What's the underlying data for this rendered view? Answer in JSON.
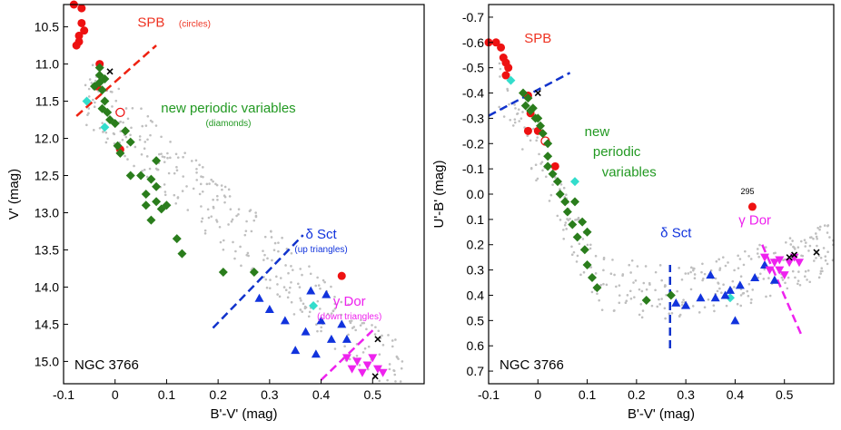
{
  "chart_data": [
    {
      "type": "scatter",
      "xlabel": "B'-V' (mag)",
      "ylabel": "V' (mag)",
      "xlim": [
        -0.1,
        0.6
      ],
      "ylim": [
        15.3,
        10.2
      ],
      "y_inverted": true,
      "x_ticks": [
        "-0.1",
        "0",
        "0.1",
        "0.2",
        "0.3",
        "0.4",
        "0.5"
      ],
      "x_tick_values": [
        -0.1,
        0,
        0.1,
        0.2,
        0.3,
        0.4,
        0.5
      ],
      "y_ticks": [
        "10.5",
        "11.0",
        "11.5",
        "12.0",
        "12.5",
        "13.0",
        "13.5",
        "14.0",
        "14.5",
        "15.0"
      ],
      "y_tick_values": [
        10.5,
        11.0,
        11.5,
        12.0,
        12.5,
        13.0,
        13.5,
        14.0,
        14.5,
        15.0
      ],
      "cluster_label": "NGC 3766",
      "labels": [
        {
          "text": "SPB",
          "sub": "(circles)",
          "color": "#ee3322",
          "x": 0.07,
          "y": 10.5
        },
        {
          "text": "new periodic variables",
          "sub": "(diamonds)",
          "color": "#229922",
          "x": 0.22,
          "y": 11.65
        },
        {
          "text": "δ Sct",
          "sub": "(up triangles)",
          "color": "#1133dd",
          "x": 0.4,
          "y": 13.35
        },
        {
          "text": "γ Dor",
          "sub": "(down triangles)",
          "color": "#ee22ee",
          "x": 0.455,
          "y": 14.25
        }
      ],
      "boundaries": [
        {
          "color": "#ee2211",
          "x": [
            -0.075,
            0.08
          ],
          "y": [
            11.7,
            10.75
          ]
        },
        {
          "color": "#1133cc",
          "x": [
            0.19,
            0.365
          ],
          "y": [
            14.55,
            13.3
          ]
        },
        {
          "color": "#ee22ee",
          "x": [
            0.4,
            0.505
          ],
          "y": [
            15.25,
            14.55
          ]
        }
      ],
      "series": [
        {
          "marker": "circle",
          "color": "#ee1111",
          "filled": true,
          "points": [
            [
              -0.08,
              10.2
            ],
            [
              -0.065,
              10.25
            ],
            [
              -0.065,
              10.45
            ],
            [
              -0.06,
              10.55
            ],
            [
              -0.07,
              10.62
            ],
            [
              -0.07,
              10.7
            ],
            [
              -0.075,
              10.75
            ],
            [
              -0.03,
              11.0
            ],
            [
              -0.035,
              11.3
            ],
            [
              0.01,
              12.15
            ],
            [
              0.44,
              13.85
            ]
          ]
        },
        {
          "marker": "circle",
          "color": "#ee1111",
          "filled": false,
          "points": [
            [
              0.01,
              11.65
            ]
          ]
        },
        {
          "marker": "diamond",
          "color": "#2a7d1c",
          "points": [
            [
              -0.03,
              11.25
            ],
            [
              -0.025,
              11.35
            ],
            [
              -0.02,
              11.5
            ],
            [
              -0.025,
              11.6
            ],
            [
              -0.015,
              11.65
            ],
            [
              -0.01,
              11.75
            ],
            [
              0.0,
              11.8
            ],
            [
              0.02,
              11.9
            ],
            [
              0.03,
              12.05
            ],
            [
              0.01,
              12.2
            ],
            [
              0.005,
              12.1
            ],
            [
              0.03,
              12.5
            ],
            [
              0.05,
              12.5
            ],
            [
              0.07,
              12.55
            ],
            [
              0.08,
              12.65
            ],
            [
              0.06,
              12.75
            ],
            [
              0.08,
              12.85
            ],
            [
              0.06,
              12.9
            ],
            [
              0.09,
              12.95
            ],
            [
              0.07,
              13.1
            ],
            [
              0.12,
              13.35
            ],
            [
              0.13,
              13.55
            ],
            [
              0.21,
              13.8
            ],
            [
              0.27,
              13.8
            ],
            [
              -0.04,
              11.3
            ],
            [
              -0.03,
              11.05
            ],
            [
              -0.03,
              11.15
            ],
            [
              -0.02,
              11.2
            ],
            [
              0.08,
              12.3
            ],
            [
              0.1,
              12.9
            ]
          ]
        },
        {
          "marker": "diamond",
          "color": "#33ddcc",
          "points": [
            [
              -0.055,
              11.5
            ],
            [
              -0.02,
              11.85
            ],
            [
              0.385,
              14.25
            ]
          ]
        },
        {
          "marker": "triangle-up",
          "color": "#1133dd",
          "points": [
            [
              0.3,
              14.3
            ],
            [
              0.33,
              14.45
            ],
            [
              0.37,
              14.6
            ],
            [
              0.35,
              14.85
            ],
            [
              0.39,
              14.9
            ],
            [
              0.41,
              14.1
            ],
            [
              0.42,
              14.7
            ],
            [
              0.44,
              14.5
            ],
            [
              0.45,
              14.7
            ],
            [
              0.38,
              14.05
            ],
            [
              0.28,
              14.15
            ],
            [
              0.4,
              14.45
            ]
          ]
        },
        {
          "marker": "triangle-down",
          "color": "#ee22ee",
          "points": [
            [
              0.45,
              14.95
            ],
            [
              0.47,
              15.0
            ],
            [
              0.49,
              15.05
            ],
            [
              0.5,
              14.95
            ],
            [
              0.48,
              15.15
            ],
            [
              0.46,
              15.1
            ],
            [
              0.51,
              15.1
            ],
            [
              0.52,
              15.15
            ]
          ]
        },
        {
          "marker": "cross",
          "color": "#000000",
          "points": [
            [
              -0.01,
              11.1
            ],
            [
              0.51,
              14.7
            ],
            [
              0.505,
              15.2
            ]
          ]
        }
      ]
    },
    {
      "type": "scatter",
      "xlabel": "B'-V' (mag)",
      "ylabel": "U'-B' (mag)",
      "xlim": [
        -0.1,
        0.6
      ],
      "ylim": [
        0.75,
        -0.75
      ],
      "y_inverted": true,
      "x_ticks": [
        "-0.1",
        "0",
        "0.1",
        "0.2",
        "0.3",
        "0.4",
        "0.5"
      ],
      "x_tick_values": [
        -0.1,
        0,
        0.1,
        0.2,
        0.3,
        0.4,
        0.5
      ],
      "y_ticks": [
        "-0.7",
        "-0.6",
        "-0.5",
        "-0.4",
        "-0.3",
        "-0.2",
        "-0.1",
        "0.0",
        "0.1",
        "0.2",
        "0.3",
        "0.4",
        "0.5",
        "0.6",
        "0.7"
      ],
      "y_tick_values": [
        -0.7,
        -0.6,
        -0.5,
        -0.4,
        -0.3,
        -0.2,
        -0.1,
        0.0,
        0.1,
        0.2,
        0.3,
        0.4,
        0.5,
        0.6,
        0.7
      ],
      "cluster_label": "NGC 3766",
      "labels": [
        {
          "text": "SPB",
          "sub": "",
          "color": "#ee3322",
          "x": -0.0,
          "y": -0.6
        },
        {
          "text": "new",
          "sub": "",
          "color": "#229922",
          "x": 0.12,
          "y": -0.23
        },
        {
          "text": "periodic",
          "sub": "",
          "color": "#229922",
          "x": 0.16,
          "y": -0.15
        },
        {
          "text": "variables",
          "sub": "",
          "color": "#229922",
          "x": 0.185,
          "y": -0.07
        },
        {
          "text": "δ Sct",
          "sub": "",
          "color": "#1133dd",
          "x": 0.28,
          "y": 0.17
        },
        {
          "text": "γ Dor",
          "sub": "",
          "color": "#ee22ee",
          "x": 0.44,
          "y": 0.12
        },
        {
          "text": "295",
          "sub": "",
          "color": "#000000",
          "x": 0.425,
          "y": 0.0
        }
      ],
      "boundaries": [
        {
          "color": "#1133cc",
          "x": [
            -0.1,
            0.065
          ],
          "y": [
            -0.31,
            -0.48
          ]
        },
        {
          "color": "#1133cc",
          "x": [
            0.268,
            0.268
          ],
          "y": [
            0.61,
            0.28
          ]
        },
        {
          "color": "#ee22ee",
          "x": [
            0.455,
            0.535
          ],
          "y": [
            0.2,
            0.56
          ]
        }
      ],
      "series": [
        {
          "marker": "circle",
          "color": "#ee1111",
          "filled": true,
          "points": [
            [
              -0.1,
              -0.6
            ],
            [
              -0.085,
              -0.6
            ],
            [
              -0.075,
              -0.58
            ],
            [
              -0.07,
              -0.54
            ],
            [
              -0.065,
              -0.52
            ],
            [
              -0.06,
              -0.5
            ],
            [
              -0.065,
              -0.47
            ],
            [
              -0.02,
              -0.39
            ],
            [
              -0.015,
              -0.32
            ],
            [
              -0.02,
              -0.25
            ],
            [
              -0.0,
              -0.25
            ],
            [
              0.035,
              -0.11
            ],
            [
              0.435,
              0.05
            ]
          ]
        },
        {
          "marker": "circle",
          "color": "#ee1111",
          "filled": false,
          "points": [
            [
              0.015,
              -0.21
            ]
          ]
        },
        {
          "marker": "diamond",
          "color": "#2a7d1c",
          "points": [
            [
              -0.03,
              -0.4
            ],
            [
              -0.02,
              -0.38
            ],
            [
              -0.025,
              -0.35
            ],
            [
              -0.015,
              -0.33
            ],
            [
              -0.005,
              -0.3
            ],
            [
              0.005,
              -0.27
            ],
            [
              0.01,
              -0.24
            ],
            [
              0.02,
              -0.2
            ],
            [
              0.02,
              -0.15
            ],
            [
              0.03,
              -0.08
            ],
            [
              0.04,
              -0.05
            ],
            [
              0.055,
              0.03
            ],
            [
              0.06,
              0.07
            ],
            [
              0.07,
              0.12
            ],
            [
              0.08,
              0.17
            ],
            [
              0.095,
              0.22
            ],
            [
              0.1,
              0.28
            ],
            [
              0.11,
              0.33
            ],
            [
              0.12,
              0.37
            ],
            [
              0.22,
              0.42
            ],
            [
              0.27,
              0.4
            ],
            [
              0.045,
              0.0
            ],
            [
              0.075,
              0.03
            ],
            [
              0.09,
              0.11
            ],
            [
              0.1,
              0.15
            ],
            [
              0.02,
              -0.11
            ],
            [
              -0.01,
              -0.34
            ],
            [
              -0.0,
              -0.3
            ]
          ]
        },
        {
          "marker": "diamond",
          "color": "#33ddcc",
          "points": [
            [
              -0.055,
              -0.45
            ],
            [
              0.075,
              -0.05
            ],
            [
              0.39,
              0.41
            ]
          ]
        },
        {
          "marker": "triangle-up",
          "color": "#1133dd",
          "points": [
            [
              0.28,
              0.43
            ],
            [
              0.3,
              0.44
            ],
            [
              0.33,
              0.41
            ],
            [
              0.35,
              0.32
            ],
            [
              0.36,
              0.41
            ],
            [
              0.38,
              0.4
            ],
            [
              0.4,
              0.5
            ],
            [
              0.41,
              0.36
            ],
            [
              0.44,
              0.33
            ],
            [
              0.46,
              0.28
            ],
            [
              0.48,
              0.34
            ],
            [
              0.39,
              0.38
            ]
          ]
        },
        {
          "marker": "triangle-down",
          "color": "#ee22ee",
          "points": [
            [
              0.46,
              0.25
            ],
            [
              0.48,
              0.27
            ],
            [
              0.49,
              0.3
            ],
            [
              0.51,
              0.27
            ],
            [
              0.52,
              0.25
            ],
            [
              0.5,
              0.32
            ],
            [
              0.47,
              0.3
            ],
            [
              0.53,
              0.27
            ],
            [
              0.49,
              0.26
            ]
          ]
        },
        {
          "marker": "cross",
          "color": "#000000",
          "points": [
            [
              -0.0,
              -0.4
            ],
            [
              0.51,
              0.25
            ],
            [
              0.52,
              0.24
            ],
            [
              0.565,
              0.23
            ]
          ]
        }
      ]
    }
  ]
}
